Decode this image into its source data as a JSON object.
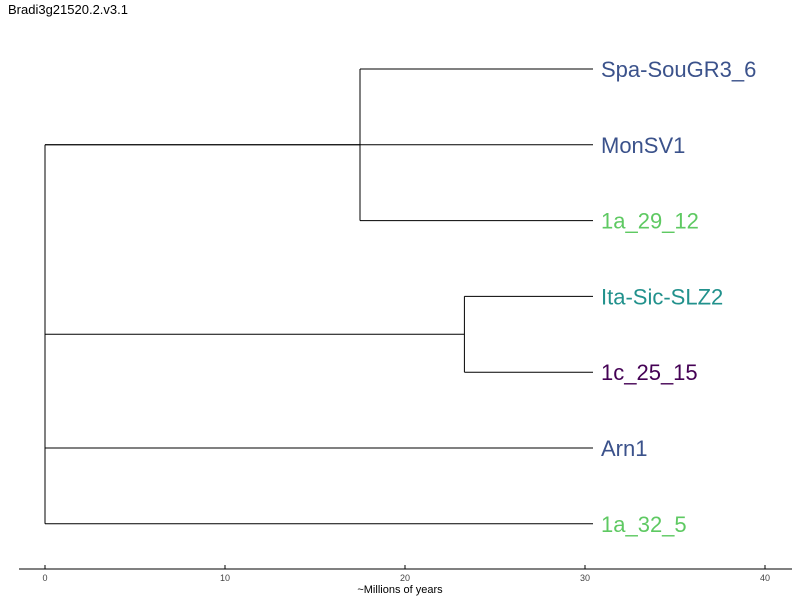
{
  "title": "Bradi3g21520.2.v3.1",
  "axis": {
    "label": "~Millions of years",
    "ticks": [
      0,
      10,
      20,
      30,
      40
    ],
    "range": [
      -2,
      41.5
    ]
  },
  "leaf_depth": 30,
  "leaves": [
    {
      "name": "Spa-SouGR3_6",
      "color": "#3b528b"
    },
    {
      "name": "MonSV1",
      "color": "#3b528b"
    },
    {
      "name": "1a_29_12",
      "color": "#5ec962"
    },
    {
      "name": "Ita-Sic-SLZ2",
      "color": "#21918c"
    },
    {
      "name": "1c_25_15",
      "color": "#440154"
    },
    {
      "name": "Arn1",
      "color": "#3b528b"
    },
    {
      "name": "1a_32_5",
      "color": "#5ec962"
    }
  ],
  "clades": [
    {
      "age": 17.5,
      "children": [
        0,
        2
      ]
    },
    {
      "age": 23.3,
      "children": [
        3,
        4
      ]
    }
  ],
  "root": {
    "age": 0,
    "children": [
      1,
      "clade0",
      "clade1",
      5,
      6
    ]
  }
}
